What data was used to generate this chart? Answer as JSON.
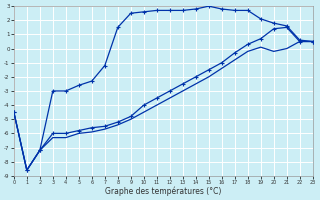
{
  "xlabel": "Graphe des températures (°C)",
  "background_color": "#cceef5",
  "grid_color": "#ffffff",
  "line_color": "#0033aa",
  "xlim": [
    0,
    23
  ],
  "ylim": [
    -9,
    3
  ],
  "xticks": [
    0,
    1,
    2,
    3,
    4,
    5,
    6,
    7,
    8,
    9,
    10,
    11,
    12,
    13,
    14,
    15,
    16,
    17,
    18,
    19,
    20,
    21,
    22,
    23
  ],
  "yticks": [
    -9,
    -8,
    -7,
    -6,
    -5,
    -4,
    -3,
    -2,
    -1,
    0,
    1,
    2,
    3
  ],
  "hours": [
    0,
    1,
    2,
    3,
    4,
    5,
    6,
    7,
    8,
    9,
    10,
    11,
    12,
    13,
    14,
    15,
    16,
    17,
    18,
    19,
    20,
    21,
    22,
    23
  ],
  "line1": [
    -4.5,
    -8.6,
    -7.2,
    -3.0,
    -3.0,
    -2.6,
    -2.3,
    -1.2,
    1.5,
    2.5,
    2.6,
    2.7,
    2.7,
    2.7,
    2.8,
    3.0,
    2.8,
    2.7,
    2.7,
    2.1,
    1.8,
    1.6,
    0.6,
    0.5
  ],
  "line2": [
    -4.5,
    -8.6,
    -7.2,
    -6.0,
    -6.0,
    -5.8,
    -5.6,
    -5.5,
    -5.2,
    -4.8,
    -4.0,
    -3.5,
    -3.0,
    -2.5,
    -2.0,
    -1.5,
    -1.0,
    -0.3,
    0.3,
    0.7,
    1.4,
    1.5,
    0.5,
    0.5
  ],
  "line3": [
    -4.5,
    -8.6,
    -7.2,
    -6.3,
    -6.3,
    -6.0,
    -5.9,
    -5.7,
    -5.4,
    -5.0,
    -4.5,
    -4.0,
    -3.5,
    -3.0,
    -2.5,
    -2.0,
    -1.4,
    -0.8,
    -0.2,
    0.1,
    -0.2,
    0.0,
    0.5,
    0.5
  ]
}
